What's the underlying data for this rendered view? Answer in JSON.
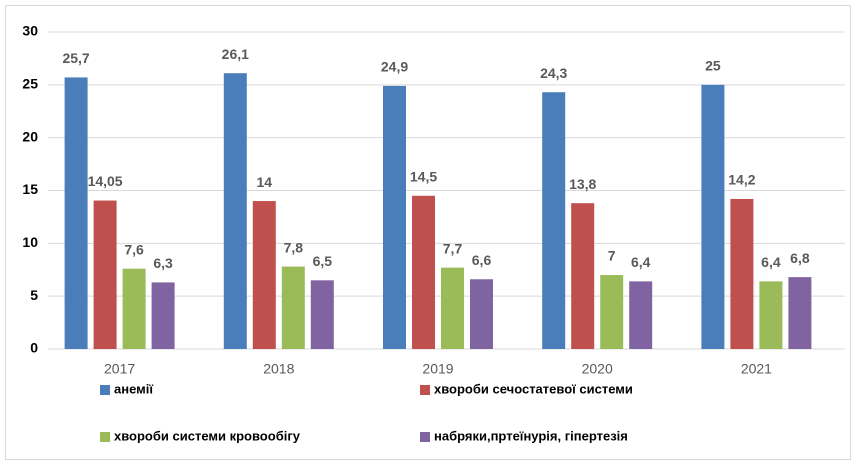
{
  "chart_data": {
    "type": "bar",
    "categories": [
      "2017",
      "2018",
      "2019",
      "2020",
      "2021"
    ],
    "series": [
      {
        "name": "анемії",
        "color": "#4a7ebb",
        "values": [
          25.7,
          26.1,
          24.9,
          24.3,
          25
        ],
        "value_labels": [
          "25,7",
          "26,1",
          "24,9",
          "24,3",
          "25"
        ]
      },
      {
        "name": "хвороби сечостатевої системи",
        "color": "#c0504d",
        "values": [
          14.05,
          14,
          14.5,
          13.8,
          14.2
        ],
        "value_labels": [
          "14,05",
          "14",
          "14,5",
          "13,8",
          "14,2"
        ]
      },
      {
        "name": "хвороби системи кровообігу",
        "color": "#9bbb59",
        "values": [
          7.6,
          7.8,
          7.7,
          7,
          6.4
        ],
        "value_labels": [
          "7,6",
          "7,8",
          "7,7",
          "7",
          "6,4"
        ]
      },
      {
        "name": "набряки,пртеїнурія, гіпертезія",
        "color": "#8064a2",
        "values": [
          6.3,
          6.5,
          6.6,
          6.4,
          6.8
        ],
        "value_labels": [
          "6,3",
          "6,5",
          "6,6",
          "6,4",
          "6,8"
        ]
      }
    ],
    "ylim": [
      0,
      30
    ],
    "yticks": [
      0,
      5,
      10,
      15,
      20,
      25,
      30
    ],
    "grid": true,
    "legend": "bottom"
  }
}
